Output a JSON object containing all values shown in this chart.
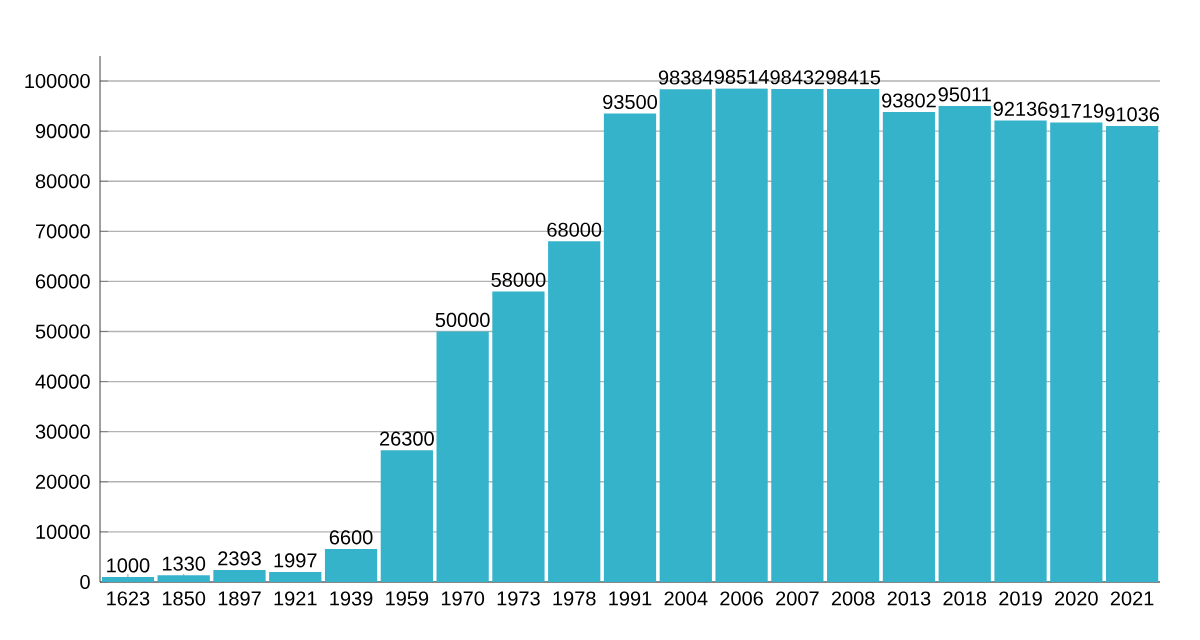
{
  "chart_data": {
    "type": "bar",
    "categories": [
      "1623",
      "1850",
      "1897",
      "1921",
      "1939",
      "1959",
      "1970",
      "1973",
      "1978",
      "1991",
      "2004",
      "2006",
      "2007",
      "2008",
      "2013",
      "2018",
      "2019",
      "2020",
      "2021"
    ],
    "values": [
      1000,
      1330,
      2393,
      1997,
      6600,
      26300,
      50000,
      58000,
      68000,
      93500,
      98384,
      98514,
      98432,
      98415,
      93802,
      95011,
      92136,
      91719,
      91036
    ],
    "color": "#35b3cb",
    "ylim": [
      0,
      105000
    ],
    "yticks": [
      0,
      10000,
      20000,
      30000,
      40000,
      50000,
      60000,
      70000,
      80000,
      90000,
      100000
    ],
    "grid": "y",
    "data_labels": true
  }
}
